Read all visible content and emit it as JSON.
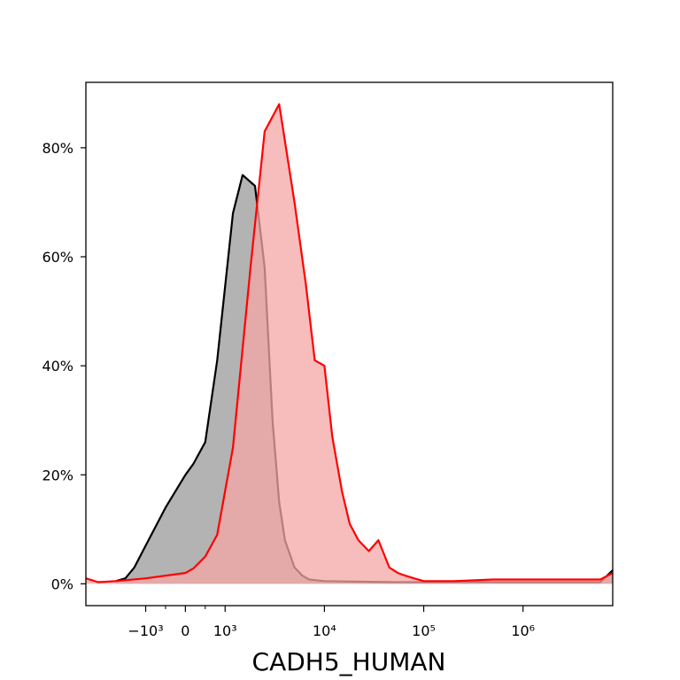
{
  "chart_data": {
    "type": "area",
    "xlabel": "CADH5_HUMAN",
    "ylabel": "",
    "x_scale": "biexponential",
    "xlim": [
      -4000,
      8000000
    ],
    "ylim": [
      -4,
      92
    ],
    "grid": false,
    "legend": "none",
    "x_ticks": [
      {
        "value": -1000,
        "label": "−10³"
      },
      {
        "value": 0,
        "label": "0"
      },
      {
        "value": 1000,
        "label": "10³"
      },
      {
        "value": 10000,
        "label": "10⁴"
      },
      {
        "value": 100000,
        "label": "10⁵"
      },
      {
        "value": 1000000,
        "label": "10⁶"
      }
    ],
    "x_minor_ticks": [
      -500,
      500
    ],
    "y_ticks": [
      {
        "value": 0,
        "label": "0%"
      },
      {
        "value": 20,
        "label": "20%"
      },
      {
        "value": 40,
        "label": "40%"
      },
      {
        "value": 60,
        "label": "60%"
      },
      {
        "value": 80,
        "label": "80%"
      }
    ],
    "series": [
      {
        "color": "#000000",
        "fill": "#999999",
        "x": [
          -2000,
          -1600,
          -1300,
          -1000,
          -500,
          0,
          200,
          500,
          800,
          1200,
          1500,
          2000,
          2500,
          3000,
          3500,
          4000,
          5000,
          6000,
          7000,
          10000,
          20000,
          50000,
          100000,
          300000,
          1000000,
          3000000,
          6000000,
          8000000
        ],
        "y": [
          0.5,
          1,
          3,
          7,
          14,
          20,
          22,
          26,
          41,
          68,
          75,
          73,
          58,
          30,
          15,
          8,
          3,
          1.5,
          0.8,
          0.5,
          0.4,
          0.3,
          0.3,
          0.3,
          0.3,
          0.3,
          0.3,
          2.5
        ]
      },
      {
        "color": "#ff0000",
        "fill": "#f4a6a6",
        "x": [
          -4000,
          -3000,
          -2000,
          -1000,
          0,
          200,
          500,
          800,
          1200,
          1800,
          2500,
          3500,
          5000,
          6500,
          8000,
          10000,
          12000,
          15000,
          18000,
          22000,
          28000,
          35000,
          45000,
          55000,
          65000,
          80000,
          100000,
          200000,
          500000,
          1000000,
          3000000,
          6000000,
          8000000
        ],
        "y": [
          1,
          0.3,
          0.5,
          1,
          2,
          2.8,
          5,
          9,
          25,
          58,
          83,
          88,
          70,
          55,
          41,
          40,
          27,
          17,
          11,
          8,
          6,
          8,
          3,
          2,
          1.5,
          1,
          0.5,
          0.5,
          0.8,
          0.8,
          0.8,
          0.8,
          2
        ]
      }
    ]
  }
}
